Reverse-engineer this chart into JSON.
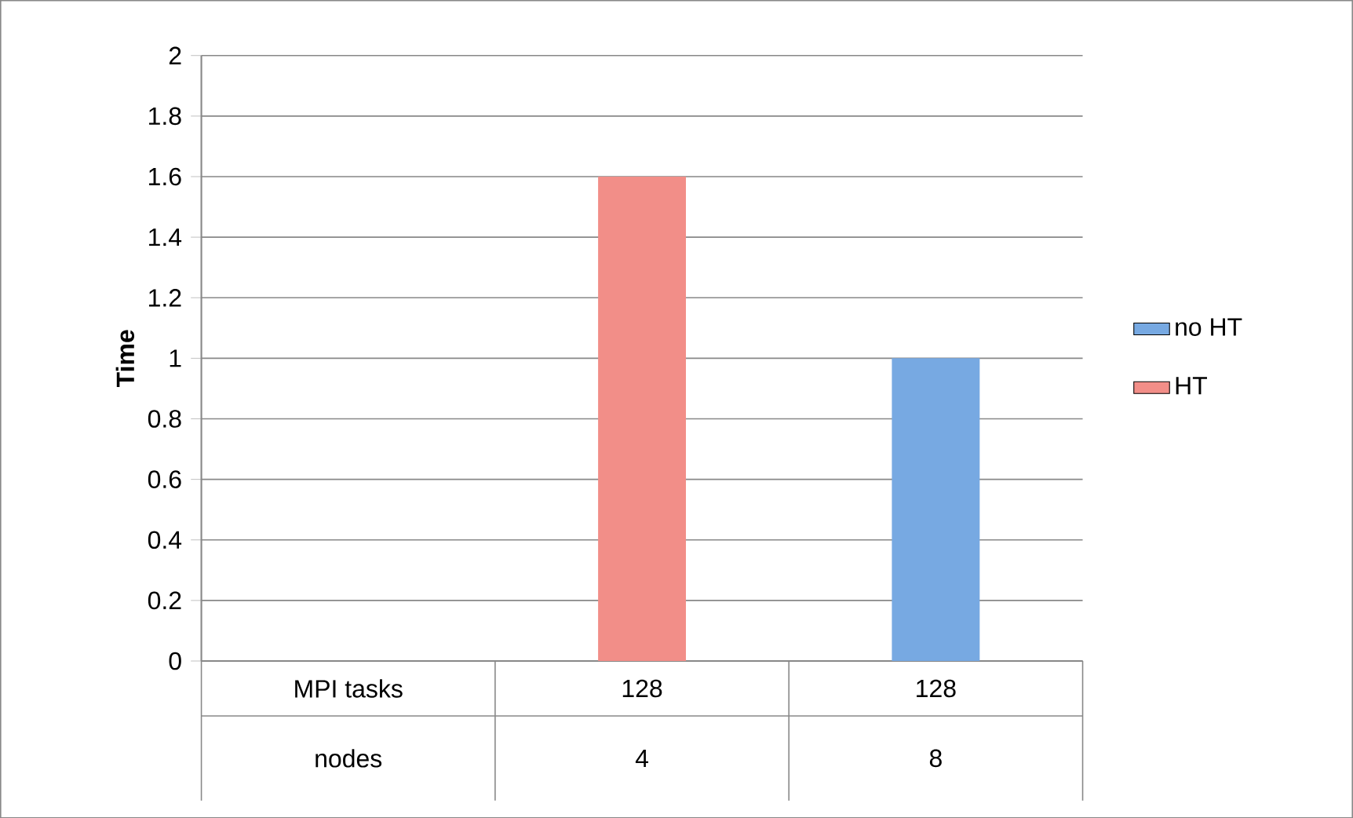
{
  "chart_data": {
    "type": "bar",
    "ylabel": "Time",
    "categories": [
      "MPI tasks",
      "128",
      "128"
    ],
    "annotations": [
      "nodes",
      "4",
      "8"
    ],
    "series": [
      {
        "name": "no HT",
        "color": "#77a9e2",
        "values": [
          null,
          null,
          1.0
        ]
      },
      {
        "name": "HT",
        "color": "#f28e88",
        "values": [
          null,
          1.6,
          null
        ]
      }
    ],
    "ylim": [
      0,
      2
    ],
    "yticks": [
      0,
      0.2,
      0.4,
      0.6,
      0.8,
      1,
      1.2,
      1.4,
      1.6,
      1.8,
      2
    ],
    "grid": "y",
    "legend": "right"
  }
}
